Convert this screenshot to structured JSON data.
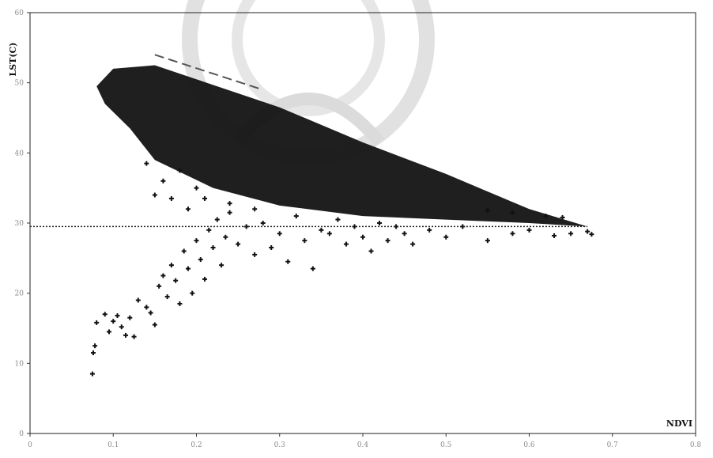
{
  "chart_data": {
    "type": "scatter",
    "title": "",
    "xlabel": "NDVI",
    "ylabel": "LST(C)",
    "xlim": [
      0,
      0.8
    ],
    "ylim": [
      0,
      60
    ],
    "x_ticks": [
      "0",
      "0.1",
      "0.2",
      "0.3",
      "0.4",
      "0.5",
      "0.6",
      "0.7",
      "0.8"
    ],
    "y_ticks": [
      "0",
      "10",
      "20",
      "30",
      "40",
      "50",
      "60"
    ],
    "grid": false,
    "legend": "none",
    "marker_color": "#111111",
    "dense_band": {
      "description_free_polygon_data_units": [
        [
          0.08,
          49.5
        ],
        [
          0.1,
          52
        ],
        [
          0.15,
          52.5
        ],
        [
          0.2,
          50.5
        ],
        [
          0.3,
          46.5
        ],
        [
          0.4,
          41.5
        ],
        [
          0.5,
          37
        ],
        [
          0.55,
          34.5
        ],
        [
          0.6,
          32
        ],
        [
          0.67,
          29.5
        ],
        [
          0.6,
          30
        ],
        [
          0.5,
          30.5
        ],
        [
          0.4,
          31
        ],
        [
          0.3,
          32.5
        ],
        [
          0.22,
          35
        ],
        [
          0.15,
          39
        ],
        [
          0.12,
          43.5
        ],
        [
          0.09,
          47
        ]
      ]
    },
    "scatter_points": [
      [
        0.075,
        8.5
      ],
      [
        0.076,
        11.5
      ],
      [
        0.078,
        12.5
      ],
      [
        0.08,
        15.8
      ],
      [
        0.09,
        17
      ],
      [
        0.095,
        14.5
      ],
      [
        0.1,
        16
      ],
      [
        0.105,
        16.8
      ],
      [
        0.11,
        15.2
      ],
      [
        0.115,
        14
      ],
      [
        0.12,
        16.5
      ],
      [
        0.125,
        13.8
      ],
      [
        0.13,
        19
      ],
      [
        0.14,
        18
      ],
      [
        0.145,
        17.2
      ],
      [
        0.15,
        15.5
      ],
      [
        0.155,
        21
      ],
      [
        0.16,
        22.5
      ],
      [
        0.165,
        19.5
      ],
      [
        0.17,
        24
      ],
      [
        0.175,
        21.8
      ],
      [
        0.18,
        18.5
      ],
      [
        0.185,
        26
      ],
      [
        0.19,
        23.5
      ],
      [
        0.195,
        20
      ],
      [
        0.2,
        27.5
      ],
      [
        0.205,
        24.8
      ],
      [
        0.21,
        22
      ],
      [
        0.215,
        29
      ],
      [
        0.22,
        26.5
      ],
      [
        0.225,
        30.5
      ],
      [
        0.23,
        24
      ],
      [
        0.235,
        28
      ],
      [
        0.24,
        31.5
      ],
      [
        0.25,
        27
      ],
      [
        0.26,
        29.5
      ],
      [
        0.27,
        25.5
      ],
      [
        0.28,
        30
      ],
      [
        0.29,
        26.5
      ],
      [
        0.3,
        28.5
      ],
      [
        0.31,
        24.5
      ],
      [
        0.32,
        31
      ],
      [
        0.33,
        27.5
      ],
      [
        0.34,
        23.5
      ],
      [
        0.35,
        29
      ],
      [
        0.36,
        28.5
      ],
      [
        0.37,
        30.5
      ],
      [
        0.38,
        27
      ],
      [
        0.39,
        29.5
      ],
      [
        0.4,
        28
      ],
      [
        0.41,
        26
      ],
      [
        0.42,
        30
      ],
      [
        0.43,
        27.5
      ],
      [
        0.44,
        29.5
      ],
      [
        0.45,
        28.5
      ],
      [
        0.46,
        27
      ],
      [
        0.48,
        29
      ],
      [
        0.5,
        28
      ],
      [
        0.52,
        29.5
      ],
      [
        0.55,
        27.5
      ],
      [
        0.58,
        28.5
      ],
      [
        0.6,
        29
      ],
      [
        0.63,
        28.2
      ],
      [
        0.65,
        28.5
      ],
      [
        0.67,
        28.8
      ],
      [
        0.675,
        28.4
      ],
      [
        0.18,
        37.5
      ],
      [
        0.16,
        36
      ],
      [
        0.17,
        33.5
      ],
      [
        0.15,
        34
      ],
      [
        0.19,
        32
      ],
      [
        0.14,
        38.5
      ],
      [
        0.2,
        35
      ],
      [
        0.21,
        33.5
      ],
      [
        0.24,
        32.8
      ],
      [
        0.27,
        32
      ],
      [
        0.55,
        31.8
      ],
      [
        0.58,
        31.5
      ],
      [
        0.62,
        31
      ],
      [
        0.64,
        30.8
      ]
    ],
    "reference_lines": [
      {
        "style": "dashed",
        "points": [
          [
            0.15,
            54
          ],
          [
            0.28,
            49
          ]
        ]
      },
      {
        "style": "dotted",
        "points": [
          [
            0,
            29.5
          ],
          [
            0.67,
            29.5
          ]
        ]
      }
    ]
  }
}
